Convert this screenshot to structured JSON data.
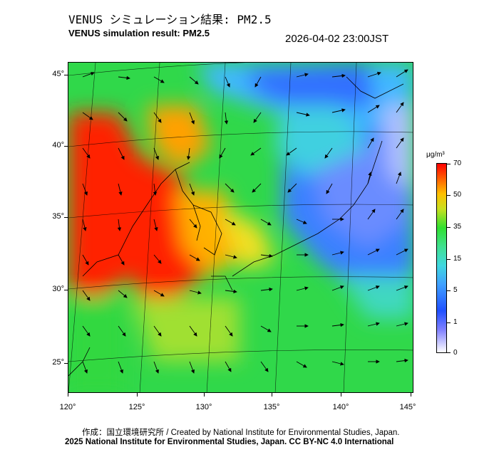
{
  "header": {
    "title_jp": "VENUS シミュレーション結果: PM2.5",
    "title_en": "VENUS simulation result: PM2.5",
    "timestamp": "2026-04-02 23:00JST"
  },
  "map": {
    "lat_labels": [
      "45°",
      "40°",
      "35°",
      "30°",
      "25°"
    ],
    "lon_labels": [
      "120°",
      "125°",
      "130°",
      "135°",
      "140°",
      "145°"
    ],
    "region": "East Asia (Japan, Korea, Eastern China)",
    "field": "PM2.5 concentration with wind vectors"
  },
  "colorbar": {
    "unit": "μg/m³",
    "labels": [
      "70",
      "50",
      "35",
      "15",
      "5",
      "1",
      "0"
    ],
    "colors": [
      "#ff0000",
      "#ff6000",
      "#ffc000",
      "#30e030",
      "#40d8e0",
      "#2050ff",
      "#ffffff"
    ]
  },
  "footer": {
    "credit_jp": "作成：国立環境研究所 / Created by National Institute for Environmental Studies, Japan.",
    "copyright": "2025 National Institute for Environmental Studies, Japan. CC BY-NC 4.0 International"
  }
}
